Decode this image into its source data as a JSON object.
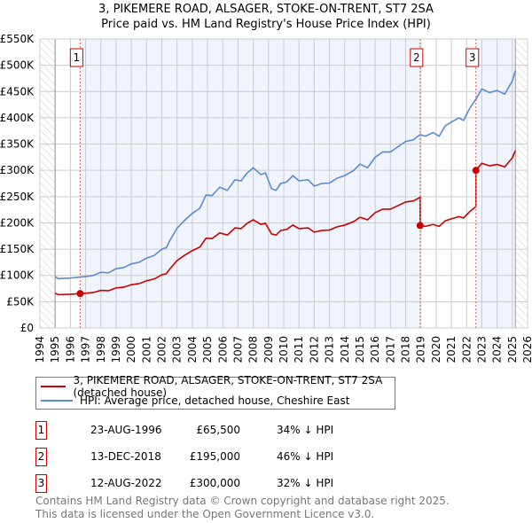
{
  "title_line1": "3, PIKEMERE ROAD, ALSAGER, STOKE-ON-TRENT, ST7 2SA",
  "title_line2": "Price paid vs. HM Land Registry's House Price Index (HPI)",
  "chart_data": {
    "type": "line",
    "xlim": [
      1994,
      2026
    ],
    "ylim": [
      0,
      550000
    ],
    "x_ticks": [
      1994,
      1995,
      1996,
      1997,
      1998,
      1999,
      2000,
      2001,
      2002,
      2003,
      2004,
      2005,
      2006,
      2007,
      2008,
      2009,
      2010,
      2011,
      2012,
      2013,
      2014,
      2015,
      2016,
      2017,
      2018,
      2019,
      2020,
      2021,
      2022,
      2023,
      2024,
      2025,
      2026
    ],
    "y_ticks": [
      {
        "v": 0,
        "label": "£0"
      },
      {
        "v": 50000,
        "label": "£50K"
      },
      {
        "v": 100000,
        "label": "£100K"
      },
      {
        "v": 150000,
        "label": "£150K"
      },
      {
        "v": 200000,
        "label": "£200K"
      },
      {
        "v": 250000,
        "label": "£250K"
      },
      {
        "v": 300000,
        "label": "£300K"
      },
      {
        "v": 350000,
        "label": "£350K"
      },
      {
        "v": 400000,
        "label": "£400K"
      },
      {
        "v": 450000,
        "label": "£450K"
      },
      {
        "v": 500000,
        "label": "£500K"
      },
      {
        "v": 550000,
        "label": "£550K"
      }
    ],
    "grid": true,
    "data_range": [
      1995,
      2025.2
    ],
    "hpi_series": {
      "name": "HPI: Average price, detached house, Cheshire East",
      "color": "#5b8bd0",
      "x": [
        1995.0,
        1995.2,
        1996.0,
        1996.64,
        1997.0,
        1997.5,
        1998.0,
        1998.5,
        1999.0,
        1999.5,
        2000.0,
        2000.5,
        2001.0,
        2001.5,
        2002.0,
        2002.3,
        2002.5,
        2003.0,
        2003.5,
        2004.0,
        2004.5,
        2004.9,
        2005.3,
        2005.8,
        2006.3,
        2006.8,
        2007.2,
        2007.6,
        2008.0,
        2008.5,
        2008.8,
        2009.2,
        2009.5,
        2009.8,
        2010.2,
        2010.6,
        2011.0,
        2011.6,
        2012.0,
        2012.5,
        2013.0,
        2013.5,
        2014.0,
        2014.6,
        2015.0,
        2015.5,
        2016.0,
        2016.5,
        2017.0,
        2017.5,
        2018.0,
        2018.5,
        2018.95,
        2019.3,
        2019.8,
        2020.2,
        2020.6,
        2021.0,
        2021.5,
        2021.8,
        2022.2,
        2022.6,
        2023.0,
        2023.5,
        2024.0,
        2024.5,
        2025.0,
        2025.2
      ],
      "y": [
        98000,
        94000,
        95000,
        97000,
        98000,
        100000,
        106000,
        105000,
        113000,
        115000,
        122000,
        125000,
        133000,
        138000,
        150000,
        153000,
        165000,
        190000,
        205000,
        218000,
        228000,
        253000,
        252000,
        268000,
        262000,
        282000,
        280000,
        295000,
        305000,
        292000,
        295000,
        265000,
        262000,
        275000,
        278000,
        290000,
        280000,
        282000,
        270000,
        275000,
        276000,
        285000,
        290000,
        300000,
        312000,
        305000,
        325000,
        335000,
        335000,
        345000,
        355000,
        358000,
        368000,
        365000,
        372000,
        365000,
        385000,
        392000,
        400000,
        395000,
        418000,
        435000,
        455000,
        448000,
        452000,
        445000,
        470000,
        490000
      ]
    },
    "property_series": {
      "name": "3, PIKEMERE ROAD, ALSAGER, STOKE-ON-TRENT, ST7 2SA (detached house)",
      "color": "#cc0000",
      "note": "price paid indexed by HPI"
    },
    "sales": [
      {
        "n": "1",
        "x": 1996.64,
        "date": "23-AUG-1996",
        "price": 65500,
        "price_label": "£65,500",
        "hpi_label": "34% ↓ HPI"
      },
      {
        "n": "2",
        "x": 2018.95,
        "date": "13-DEC-2018",
        "price": 195000,
        "price_label": "£195,000",
        "hpi_label": "46% ↓ HPI"
      },
      {
        "n": "3",
        "x": 2022.61,
        "date": "12-AUG-2022",
        "price": 300000,
        "price_label": "£300,000",
        "hpi_label": "32% ↓ HPI"
      }
    ]
  },
  "legend": {
    "property": "3, PIKEMERE ROAD, ALSAGER, STOKE-ON-TRENT, ST7 2SA (detached house)",
    "hpi": "HPI: Average price, detached house, Cheshire East"
  },
  "footer": {
    "line1": "Contains HM Land Registry data © Crown copyright and database right 2025.",
    "line2": "This data is licensed under the Open Government Licence v3.0."
  }
}
